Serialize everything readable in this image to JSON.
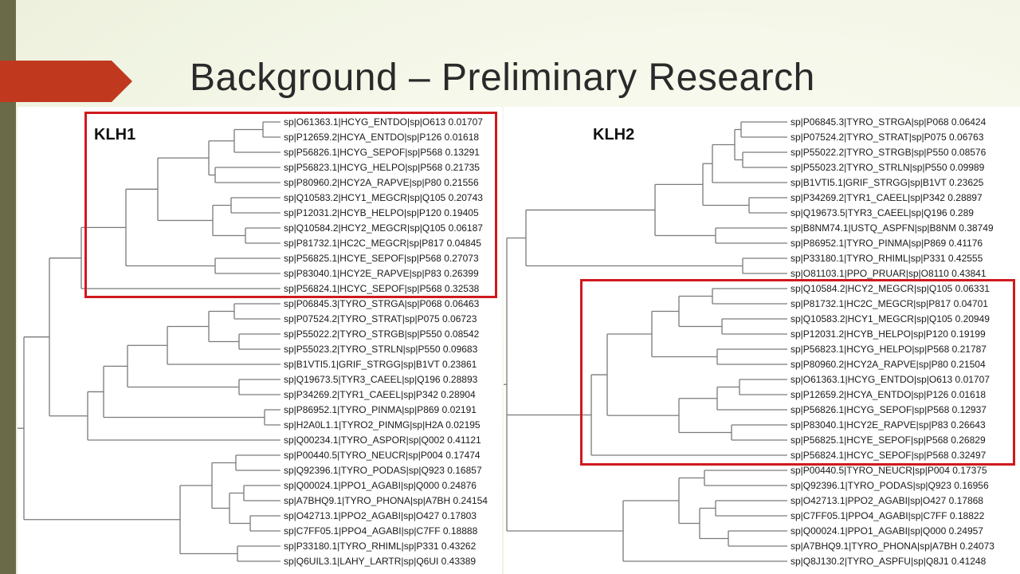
{
  "slide": {
    "title": "Background – Preliminary Research",
    "colors": {
      "accent_arrow": "#c0391f",
      "left_stripe": "#6b6a48",
      "highlight_box": "#d0191e",
      "tree_line": "#7a7a7a"
    }
  },
  "left_tree": {
    "label": "KLH1",
    "leaves": [
      "sp|O61363.1|HCYG_ENTDO|sp|O613 0.01707",
      "sp|P12659.2|HCYA_ENTDO|sp|P126 0.01618",
      "sp|P56826.1|HCYG_SEPOF|sp|P568 0.13291",
      "sp|P56823.1|HCYG_HELPO|sp|P568 0.21735",
      "sp|P80960.2|HCY2A_RAPVE|sp|P80 0.21556",
      "sp|Q10583.2|HCY1_MEGCR|sp|Q105 0.20743",
      "sp|P12031.2|HCYB_HELPO|sp|P120 0.19405",
      "sp|Q10584.2|HCY2_MEGCR|sp|Q105 0.06187",
      "sp|P81732.1|HC2C_MEGCR|sp|P817 0.04845",
      "sp|P56825.1|HCYE_SEPOF|sp|P568 0.27073",
      "sp|P83040.1|HCY2E_RAPVE|sp|P83 0.26399",
      "sp|P56824.1|HCYC_SEPOF|sp|P568 0.32538",
      "sp|P06845.3|TYRO_STRGA|sp|P068 0.06463",
      "sp|P07524.2|TYRO_STRAT|sp|P075 0.06723",
      "sp|P55022.2|TYRO_STRGB|sp|P550 0.08542",
      "sp|P55023.2|TYRO_STRLN|sp|P550 0.09683",
      "sp|B1VTI5.1|GRIF_STRGG|sp|B1VT 0.23861",
      "sp|Q19673.5|TYR3_CAEEL|sp|Q196 0.28893",
      "sp|P34269.2|TYR1_CAEEL|sp|P342 0.28904",
      "sp|P86952.1|TYRO_PINMA|sp|P869 0.02191",
      "sp|H2A0L1.1|TYRO2_PINMG|sp|H2A 0.02195",
      "sp|Q00234.1|TYRO_ASPOR|sp|Q002 0.41121",
      "sp|P00440.5|TYRO_NEUCR|sp|P004 0.17474",
      "sp|Q92396.1|TYRO_PODAS|sp|Q923 0.16857",
      "sp|Q00024.1|PPO1_AGABI|sp|Q000 0.24876",
      "sp|A7BHQ9.1|TYRO_PHONA|sp|A7BH 0.24154",
      "sp|O42713.1|PPO2_AGABI|sp|O427 0.17803",
      "sp|C7FF05.1|PPO4_AGABI|sp|C7FF 0.18888",
      "sp|P33180.1|TYRO_RHIML|sp|P331 0.43262",
      "sp|Q6UIL3.1|LAHY_LARTR|sp|Q6UI 0.43389"
    ]
  },
  "right_tree": {
    "label": "KLH2",
    "leaves": [
      "sp|P06845.3|TYRO_STRGA|sp|P068 0.06424",
      "sp|P07524.2|TYRO_STRAT|sp|P075 0.06763",
      "sp|P55022.2|TYRO_STRGB|sp|P550 0.08576",
      "sp|P55023.2|TYRO_STRLN|sp|P550 0.09989",
      "sp|B1VTI5.1|GRIF_STRGG|sp|B1VT 0.23625",
      "sp|P34269.2|TYR1_CAEEL|sp|P342 0.28897",
      "sp|Q19673.5|TYR3_CAEEL|sp|Q196 0.289",
      "sp|B8NM74.1|USTQ_ASPFN|sp|B8NM 0.38749",
      "sp|P86952.1|TYRO_PINMA|sp|P869 0.41176",
      "sp|P33180.1|TYRO_RHIML|sp|P331 0.42555",
      "sp|O81103.1|PPO_PRUAR|sp|O8110 0.43841",
      "sp|Q10584.2|HCY2_MEGCR|sp|Q105 0.06331",
      "sp|P81732.1|HC2C_MEGCR|sp|P817 0.04701",
      "sp|Q10583.2|HCY1_MEGCR|sp|Q105 0.20949",
      "sp|P12031.2|HCYB_HELPO|sp|P120 0.19199",
      "sp|P56823.1|HCYG_HELPO|sp|P568 0.21787",
      "sp|P80960.2|HCY2A_RAPVE|sp|P80 0.21504",
      "sp|O61363.1|HCYG_ENTDO|sp|O613 0.01707",
      "sp|P12659.2|HCYA_ENTDO|sp|P126 0.01618",
      "sp|P56826.1|HCYG_SEPOF|sp|P568 0.12937",
      "sp|P83040.1|HCY2E_RAPVE|sp|P83 0.26643",
      "sp|P56825.1|HCYE_SEPOF|sp|P568 0.26829",
      "sp|P56824.1|HCYC_SEPOF|sp|P568 0.32497",
      "sp|P00440.5|TYRO_NEUCR|sp|P004 0.17375",
      "sp|Q92396.1|TYRO_PODAS|sp|Q923 0.16956",
      "sp|O42713.1|PPO2_AGABI|sp|O427 0.17868",
      "sp|C7FF05.1|PPO4_AGABI|sp|C7FF 0.18822",
      "sp|Q00024.1|PPO1_AGABI|sp|Q000 0.24957",
      "sp|A7BHQ9.1|TYRO_PHONA|sp|A7BH 0.24073",
      "sp|Q8J130.2|TYRO_ASPFU|sp|Q8J1 0.41248"
    ]
  }
}
